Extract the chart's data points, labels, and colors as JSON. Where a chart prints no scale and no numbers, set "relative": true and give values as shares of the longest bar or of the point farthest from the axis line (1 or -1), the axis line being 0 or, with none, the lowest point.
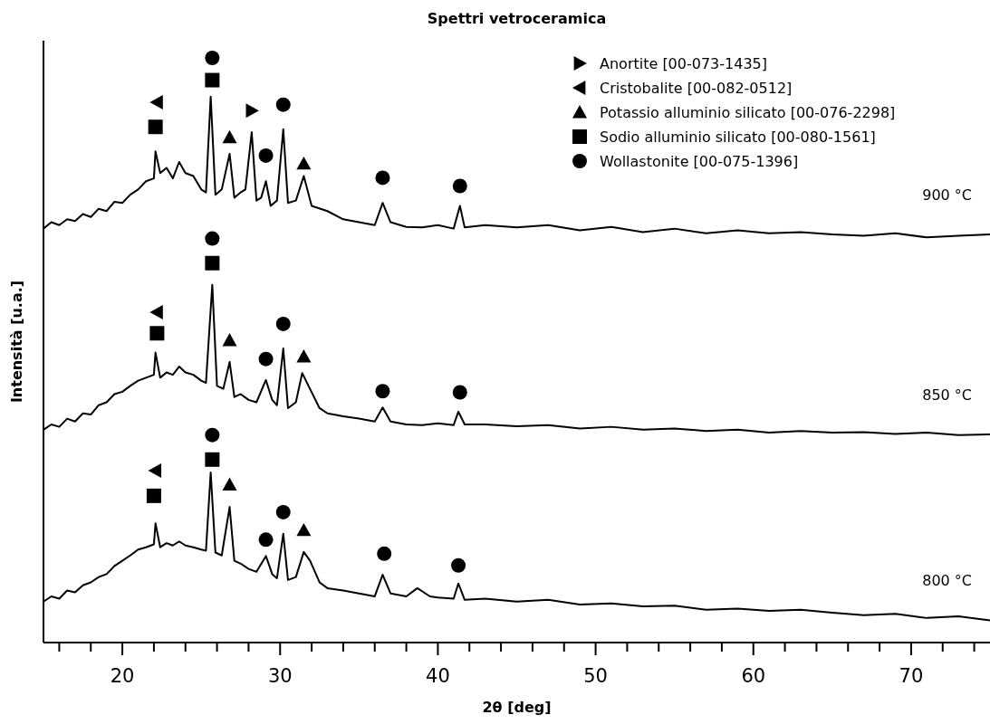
{
  "chart_data": {
    "type": "line",
    "title": "Spettri vetroceramica",
    "xlabel": "2θ [deg]",
    "ylabel": "Intensità [u.a.]",
    "relative": true,
    "xlim": [
      15,
      75
    ],
    "xticks": [
      {
        "value": 16,
        "label": null
      },
      {
        "value": 18,
        "label": null
      },
      20,
      {
        "value": 22,
        "label": null
      },
      {
        "value": 24,
        "label": null
      },
      {
        "value": 26,
        "label": null
      },
      {
        "value": 28,
        "label": null
      },
      30,
      {
        "value": 32,
        "label": null
      },
      {
        "value": 34,
        "label": null
      },
      {
        "value": 36,
        "label": null
      },
      {
        "value": 38,
        "label": null
      },
      40,
      {
        "value": 42,
        "label": null
      },
      {
        "value": 44,
        "label": null
      },
      {
        "value": 46,
        "label": null
      },
      {
        "value": 48,
        "label": null
      },
      50,
      {
        "value": 52,
        "label": null
      },
      {
        "value": 54,
        "label": null
      },
      {
        "value": 56,
        "label": null
      },
      {
        "value": 58,
        "label": null
      },
      60,
      {
        "value": 62,
        "label": null
      },
      {
        "value": 64,
        "label": null
      },
      {
        "value": 66,
        "label": null
      },
      {
        "value": 68,
        "label": null
      },
      70,
      {
        "value": 72,
        "label": null
      },
      {
        "value": 74,
        "label": null
      }
    ],
    "legend": "top right",
    "grid": false,
    "line_style": "solid",
    "series": [
      {
        "name": "900 °C",
        "color": "#000000",
        "x": [
          15,
          15.5,
          16,
          16.5,
          17,
          17.5,
          18,
          18.5,
          19,
          19.5,
          20,
          20.5,
          21,
          21.5,
          22,
          22.1,
          22.4,
          22.8,
          23.2,
          23.6,
          24,
          24.5,
          25,
          25.3,
          25.6,
          25.9,
          26.3,
          26.8,
          27.1,
          27.5,
          27.8,
          28.2,
          28.5,
          28.8,
          29.1,
          29.4,
          29.8,
          30.2,
          30.5,
          31,
          31.5,
          32,
          33,
          34,
          35,
          36,
          36.5,
          37,
          38,
          39,
          40,
          41,
          41.4,
          41.7,
          43,
          45,
          47,
          49,
          51,
          53,
          55,
          57,
          59,
          61,
          63,
          65,
          67,
          69,
          71,
          73,
          75
        ],
        "values": [
          0.708,
          0.719,
          0.714,
          0.724,
          0.721,
          0.733,
          0.728,
          0.742,
          0.738,
          0.754,
          0.752,
          0.766,
          0.775,
          0.789,
          0.794,
          0.84,
          0.803,
          0.812,
          0.794,
          0.822,
          0.803,
          0.798,
          0.775,
          0.77,
          0.934,
          0.766,
          0.775,
          0.836,
          0.761,
          0.77,
          0.775,
          0.873,
          0.756,
          0.761,
          0.789,
          0.747,
          0.756,
          0.878,
          0.752,
          0.756,
          0.798,
          0.747,
          0.738,
          0.724,
          0.719,
          0.714,
          0.752,
          0.719,
          0.711,
          0.71,
          0.714,
          0.708,
          0.747,
          0.71,
          0.714,
          0.71,
          0.714,
          0.705,
          0.711,
          0.702,
          0.708,
          0.7,
          0.705,
          0.7,
          0.702,
          0.698,
          0.696,
          0.7,
          0.693,
          0.696,
          0.698
        ]
      },
      {
        "name": "850 °C",
        "color": "#000000",
        "x": [
          15,
          15.5,
          16,
          16.5,
          17,
          17.5,
          18,
          18.5,
          19,
          19.5,
          20,
          20.5,
          21,
          21.5,
          22,
          22.1,
          22.4,
          22.8,
          23.2,
          23.6,
          24,
          24.5,
          25,
          25.3,
          25.7,
          26,
          26.4,
          26.8,
          27.1,
          27.5,
          28,
          28.5,
          29.1,
          29.5,
          29.8,
          30.2,
          30.5,
          31,
          31.4,
          31.8,
          32.5,
          33,
          34,
          35,
          36,
          36.5,
          37,
          38,
          39,
          40,
          41,
          41.3,
          41.7,
          43,
          45,
          47,
          49,
          51,
          53,
          55,
          57,
          59,
          61,
          63,
          65,
          67,
          69,
          71,
          73,
          75
        ],
        "values": [
          0.364,
          0.373,
          0.369,
          0.383,
          0.378,
          0.392,
          0.39,
          0.406,
          0.411,
          0.425,
          0.429,
          0.439,
          0.448,
          0.453,
          0.458,
          0.496,
          0.453,
          0.462,
          0.458,
          0.472,
          0.462,
          0.458,
          0.448,
          0.444,
          0.612,
          0.439,
          0.434,
          0.48,
          0.42,
          0.425,
          0.415,
          0.411,
          0.449,
          0.415,
          0.406,
          0.503,
          0.401,
          0.411,
          0.461,
          0.439,
          0.401,
          0.392,
          0.387,
          0.383,
          0.378,
          0.402,
          0.378,
          0.373,
          0.372,
          0.375,
          0.372,
          0.395,
          0.373,
          0.373,
          0.37,
          0.372,
          0.366,
          0.369,
          0.364,
          0.366,
          0.362,
          0.364,
          0.359,
          0.362,
          0.359,
          0.36,
          0.357,
          0.359,
          0.355,
          0.356
        ]
      },
      {
        "name": "800 °C",
        "color": "#000000",
        "x": [
          15,
          15.5,
          16,
          16.5,
          17,
          17.5,
          18,
          18.5,
          19,
          19.5,
          20,
          20.5,
          21,
          21.5,
          22,
          22.1,
          22.4,
          22.8,
          23.2,
          23.6,
          24,
          24.5,
          25,
          25.3,
          25.6,
          25.9,
          26.3,
          26.8,
          27.1,
          27.5,
          28,
          28.5,
          29.1,
          29.5,
          29.8,
          30.2,
          30.5,
          31,
          31.5,
          31.9,
          32.5,
          33,
          34,
          35,
          36,
          36.5,
          37,
          38,
          38.7,
          39.5,
          40,
          41,
          41.3,
          41.7,
          43,
          45,
          47,
          49,
          51,
          53,
          55,
          57,
          59,
          61,
          63,
          65,
          67,
          69,
          71,
          73,
          75
        ],
        "values": [
          0.07,
          0.079,
          0.075,
          0.089,
          0.086,
          0.098,
          0.103,
          0.112,
          0.117,
          0.131,
          0.14,
          0.149,
          0.159,
          0.163,
          0.168,
          0.204,
          0.163,
          0.17,
          0.166,
          0.173,
          0.166,
          0.163,
          0.159,
          0.157,
          0.291,
          0.154,
          0.149,
          0.232,
          0.14,
          0.135,
          0.126,
          0.121,
          0.148,
          0.117,
          0.11,
          0.186,
          0.107,
          0.112,
          0.155,
          0.14,
          0.103,
          0.093,
          0.089,
          0.084,
          0.079,
          0.116,
          0.084,
          0.079,
          0.093,
          0.079,
          0.077,
          0.075,
          0.101,
          0.073,
          0.075,
          0.07,
          0.073,
          0.065,
          0.067,
          0.062,
          0.063,
          0.056,
          0.058,
          0.054,
          0.056,
          0.051,
          0.047,
          0.049,
          0.042,
          0.045,
          0.038
        ]
      },
      {
        "type": "scatter",
        "name": "Anortite [00-073-1435]",
        "color": "#000000",
        "marker": "triangle-right",
        "x": [
          28.2
        ],
        "values": [
          0.91
        ]
      },
      {
        "type": "scatter",
        "name": "Cristobalite [00-082-0512]",
        "color": "#000000",
        "marker": "triangle-left",
        "x": [
          22.2,
          22.2,
          22.1
        ],
        "values": [
          0.924,
          0.565,
          0.294
        ]
      },
      {
        "type": "scatter",
        "name": "Potassio alluminio silicato [00-076-2298]",
        "color": "#000000",
        "marker": "triangle",
        "x": [
          26.8,
          31.5,
          26.8,
          31.5,
          26.8,
          31.5
        ],
        "values": [
          0.864,
          0.819,
          0.517,
          0.489,
          0.27,
          0.192
        ]
      },
      {
        "type": "scatter",
        "name": "Sodio alluminio silicato [00-080-1561]",
        "color": "#000000",
        "marker": "square",
        "x": [
          22.1,
          25.7,
          22.2,
          25.7,
          22.0,
          25.7
        ],
        "values": [
          0.882,
          0.962,
          0.529,
          0.649,
          0.251,
          0.313
        ]
      },
      {
        "type": "scatter",
        "name": "Wollastonite [00-075-1396]",
        "color": "#000000",
        "marker": "circle",
        "x": [
          25.7,
          29.1,
          30.2,
          36.5,
          41.4,
          25.7,
          29.1,
          30.2,
          36.5,
          41.4,
          25.7,
          29.1,
          30.2,
          36.6,
          41.3
        ],
        "values": [
          1,
          0.833,
          0.92,
          0.795,
          0.781,
          0.691,
          0.485,
          0.545,
          0.43,
          0.428,
          0.355,
          0.176,
          0.223,
          0.152,
          0.132
        ]
      }
    ]
  }
}
